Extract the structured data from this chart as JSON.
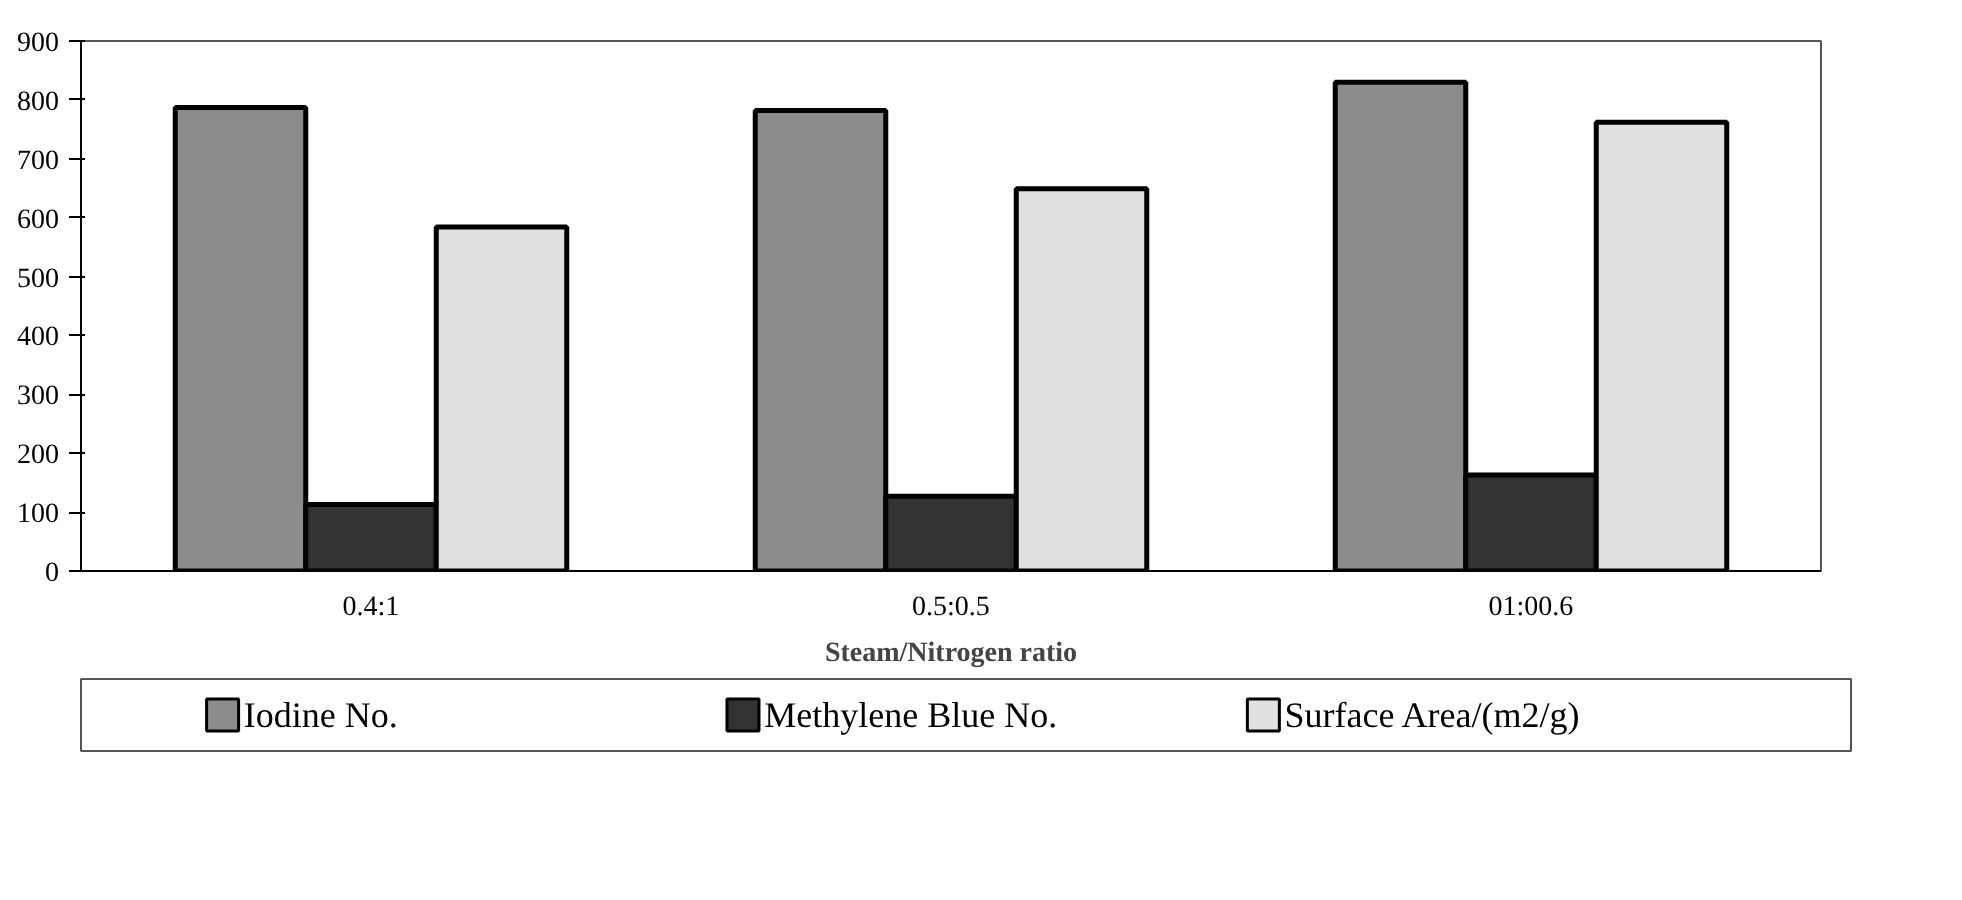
{
  "chart_data": {
    "type": "bar",
    "xlabel": "Steam/Nitrogen ratio",
    "categories": [
      "0.4:1",
      "0.5:0.5",
      "01:00.6"
    ],
    "series": [
      {
        "name": "Iodine No.",
        "color": "#8c8c8c",
        "values": [
          787,
          782,
          830
        ]
      },
      {
        "name": "Methylene Blue No.",
        "color": "#333333",
        "values": [
          113,
          127,
          163
        ]
      },
      {
        "name": "Surface Area/(m2/g)",
        "color": "#e0e0e0",
        "values": [
          584,
          649,
          762
        ]
      }
    ],
    "ylim": [
      0,
      900
    ],
    "yticks": [
      0,
      100,
      200,
      300,
      400,
      500,
      600,
      700,
      800,
      900
    ],
    "grid": false,
    "legend": "bottom"
  }
}
